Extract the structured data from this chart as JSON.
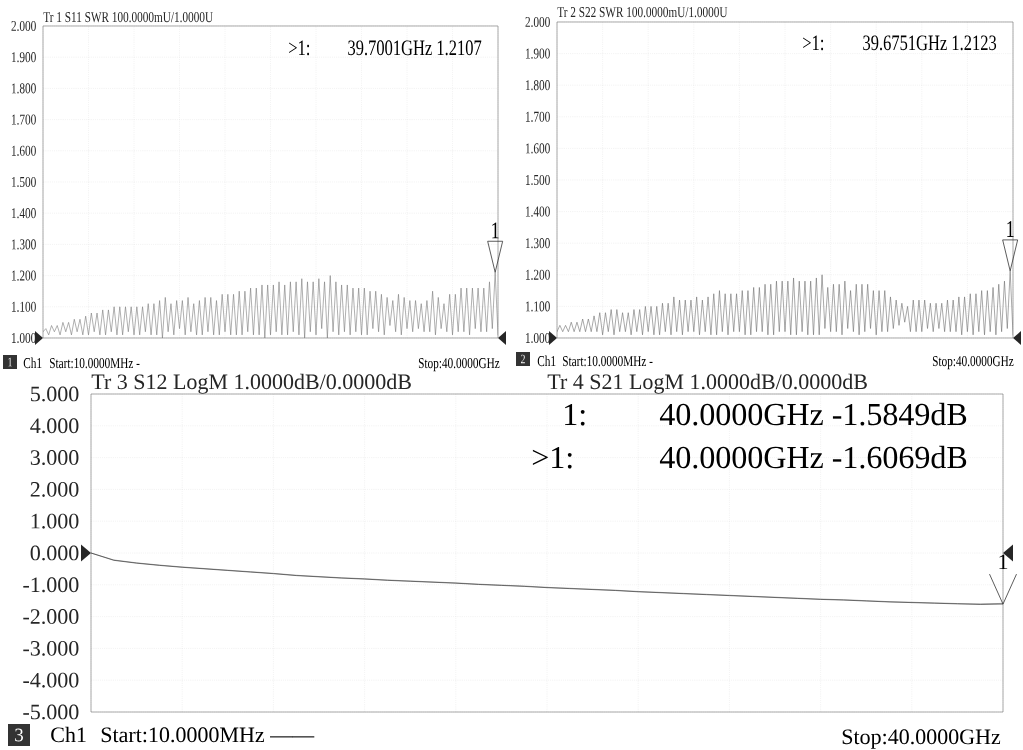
{
  "chart_data": [
    {
      "type": "line",
      "title": "Tr 1 S11 SWR 100.0000mU/1.0000U",
      "categories": [
        null,
        null,
        null,
        null,
        null,
        null,
        null,
        null,
        null,
        null,
        null,
        null,
        null,
        null,
        null,
        null,
        null,
        null,
        null,
        null,
        null,
        null,
        null,
        null,
        null,
        null,
        null,
        null,
        null,
        null,
        null,
        null,
        null,
        null,
        null,
        null,
        null,
        null,
        null,
        null,
        null,
        null,
        null,
        null,
        null,
        null,
        null,
        null,
        null,
        null,
        null,
        null,
        null,
        null,
        null,
        null,
        null,
        null,
        null,
        null,
        null,
        null,
        null,
        null,
        null,
        null,
        null,
        null,
        null,
        null,
        null,
        null,
        null,
        null,
        null,
        null,
        null,
        null,
        null,
        null,
        null,
        null,
        null,
        null,
        null,
        null,
        null,
        null,
        null,
        null,
        null,
        null,
        null,
        null,
        null,
        null,
        null,
        null,
        null,
        null,
        null,
        null,
        null,
        null,
        null,
        null,
        null,
        null,
        null,
        null,
        null,
        null,
        null,
        null,
        null,
        null,
        null,
        null,
        null,
        null,
        null,
        null,
        null,
        null,
        null,
        null,
        null,
        null,
        null,
        null,
        null,
        null,
        null,
        null,
        null,
        null,
        null,
        null,
        null,
        null,
        null,
        null,
        null,
        null,
        null,
        null,
        null,
        null,
        null,
        null,
        null,
        null,
        null,
        null,
        null,
        null,
        null,
        null,
        null,
        null,
        null
      ],
      "ylim": [
        1,
        2
      ],
      "yticks": [
        {
          "value": 1,
          "label": "1.000"
        },
        {
          "value": 1.1,
          "label": "1.100"
        },
        {
          "value": 1.2,
          "label": "1.200"
        },
        {
          "value": 1.3,
          "label": "1.300"
        },
        {
          "value": 1.4,
          "label": "1.400"
        },
        {
          "value": 1.5,
          "label": "1.500"
        },
        {
          "value": 1.6,
          "label": "1.600"
        },
        {
          "value": 1.7,
          "label": "1.700"
        },
        {
          "value": 1.8,
          "label": "1.800"
        },
        {
          "value": 1.9,
          "label": "1.900"
        },
        {
          "value": 2,
          "label": "2.000"
        }
      ],
      "grid": true,
      "series": [
        {
          "color": "#7a7a7a",
          "values": [
            1.02,
            1.03,
            1.01,
            1.04,
            1.02,
            1.04,
            1.01,
            1.05,
            1.02,
            1.05,
            1.01,
            1.06,
            1.02,
            1.06,
            1.01,
            1.07,
            1.01,
            1.08,
            1.02,
            1.08,
            1.01,
            1.09,
            1.01,
            1.09,
            1.02,
            1.1,
            1.01,
            1.1,
            1.01,
            1.1,
            1.02,
            1.1,
            1.01,
            1.1,
            1.01,
            1.1,
            1.02,
            1.11,
            1.01,
            1.11,
            1.01,
            1.12,
            1.0,
            1.13,
            1.02,
            1.11,
            1.01,
            1.12,
            1.03,
            1.12,
            1.01,
            1.13,
            1.02,
            1.11,
            1.01,
            1.12,
            1.01,
            1.13,
            1.02,
            1.13,
            1.01,
            1.12,
            1.01,
            1.14,
            1.02,
            1.14,
            1.01,
            1.14,
            1.01,
            1.15,
            1.01,
            1.15,
            1.02,
            1.16,
            1.01,
            1.16,
            1.01,
            1.17,
            1.0,
            1.17,
            1.01,
            1.17,
            1.02,
            1.18,
            1.01,
            1.17,
            1.01,
            1.18,
            1.02,
            1.18,
            1.01,
            1.19,
            1.0,
            1.18,
            1.02,
            1.18,
            1.01,
            1.19,
            1.03,
            1.18,
            1.0,
            1.2,
            1.02,
            1.18,
            1.01,
            1.17,
            1.02,
            1.17,
            1.01,
            1.16,
            1.02,
            1.16,
            1.01,
            1.16,
            1.01,
            1.15,
            1.03,
            1.15,
            1.02,
            1.14,
            1.01,
            1.13,
            1.04,
            1.12,
            1.02,
            1.14,
            1.01,
            1.13,
            1.03,
            1.12,
            1.02,
            1.12,
            1.03,
            1.11,
            1.02,
            1.12,
            1.02,
            1.15,
            1.01,
            1.13,
            1.03,
            1.11,
            1.02,
            1.14,
            1.01,
            1.14,
            1.02,
            1.16,
            1.02,
            1.16,
            1.01,
            1.16,
            1.03,
            1.16,
            1.02,
            1.16,
            1.02,
            1.18,
            1.03,
            1.2107,
            1.01
          ]
        }
      ],
      "annotations": [
        {
          "text": "1",
          "y": 1.2107
        },
        ">1:",
        "39.7001GHz 1.2107",
        "1",
        "Ch1",
        "Start:10.0000MHz -",
        "Stop:40.0000GHz"
      ]
    },
    {
      "type": "line",
      "title": "Tr 2 S22 SWR 100.0000mU/1.0000U",
      "categories": [
        null,
        null,
        null,
        null,
        null,
        null,
        null,
        null,
        null,
        null,
        null,
        null,
        null,
        null,
        null,
        null,
        null,
        null,
        null,
        null,
        null,
        null,
        null,
        null,
        null,
        null,
        null,
        null,
        null,
        null,
        null,
        null,
        null,
        null,
        null,
        null,
        null,
        null,
        null,
        null,
        null,
        null,
        null,
        null,
        null,
        null,
        null,
        null,
        null,
        null,
        null,
        null,
        null,
        null,
        null,
        null,
        null,
        null,
        null,
        null,
        null,
        null,
        null,
        null,
        null,
        null,
        null,
        null,
        null,
        null,
        null,
        null,
        null,
        null,
        null,
        null,
        null,
        null,
        null,
        null,
        null,
        null,
        null,
        null,
        null,
        null,
        null,
        null,
        null,
        null,
        null,
        null,
        null,
        null,
        null,
        null,
        null,
        null,
        null,
        null,
        null,
        null,
        null,
        null,
        null,
        null,
        null,
        null,
        null,
        null,
        null,
        null,
        null,
        null,
        null,
        null,
        null,
        null,
        null,
        null,
        null,
        null,
        null,
        null,
        null,
        null,
        null,
        null,
        null,
        null,
        null,
        null,
        null,
        null,
        null,
        null,
        null,
        null,
        null,
        null,
        null,
        null,
        null,
        null,
        null,
        null,
        null,
        null,
        null,
        null,
        null,
        null,
        null,
        null,
        null,
        null,
        null,
        null,
        null,
        null,
        null
      ],
      "ylim": [
        1,
        2
      ],
      "yticks": [
        {
          "value": 1,
          "label": "1.000"
        },
        {
          "value": 1.1,
          "label": "1.100"
        },
        {
          "value": 1.2,
          "label": "1.200"
        },
        {
          "value": 1.3,
          "label": "1.300"
        },
        {
          "value": 1.4,
          "label": "1.400"
        },
        {
          "value": 1.5,
          "label": "1.500"
        },
        {
          "value": 1.6,
          "label": "1.600"
        },
        {
          "value": 1.7,
          "label": "1.700"
        },
        {
          "value": 1.8,
          "label": "1.800"
        },
        {
          "value": 1.9,
          "label": "1.900"
        },
        {
          "value": 2,
          "label": "2.000"
        }
      ],
      "grid": true,
      "series": [
        {
          "color": "#6e6e6e",
          "values": [
            1.02,
            1.04,
            1.02,
            1.04,
            1.02,
            1.05,
            1.02,
            1.05,
            1.02,
            1.06,
            1.02,
            1.06,
            1.02,
            1.07,
            1.02,
            1.08,
            1.01,
            1.08,
            1.02,
            1.09,
            1.01,
            1.09,
            1.02,
            1.08,
            1.02,
            1.08,
            1.01,
            1.09,
            1.02,
            1.09,
            1.01,
            1.1,
            1.02,
            1.1,
            1.01,
            1.1,
            1.01,
            1.11,
            1.02,
            1.11,
            1.01,
            1.13,
            1.02,
            1.12,
            1.01,
            1.12,
            1.02,
            1.12,
            1.02,
            1.13,
            1.01,
            1.12,
            1.02,
            1.13,
            1.01,
            1.14,
            1.01,
            1.15,
            1.02,
            1.14,
            1.01,
            1.14,
            1.02,
            1.14,
            1.02,
            1.15,
            1.01,
            1.15,
            1.01,
            1.16,
            1.02,
            1.16,
            1.02,
            1.17,
            1.01,
            1.17,
            1.01,
            1.18,
            1.02,
            1.18,
            1.02,
            1.18,
            1.01,
            1.19,
            1.01,
            1.18,
            1.02,
            1.18,
            1.01,
            1.18,
            1.01,
            1.19,
            1.01,
            1.2,
            1.03,
            1.16,
            1.02,
            1.17,
            1.02,
            1.17,
            1.01,
            1.18,
            1.03,
            1.15,
            1.02,
            1.17,
            1.01,
            1.17,
            1.02,
            1.17,
            1.03,
            1.15,
            1.01,
            1.15,
            1.02,
            1.15,
            1.02,
            1.13,
            1.03,
            1.12,
            1.04,
            1.11,
            1.05,
            1.1,
            1.02,
            1.12,
            1.02,
            1.12,
            1.02,
            1.12,
            1.03,
            1.11,
            1.02,
            1.11,
            1.03,
            1.11,
            1.02,
            1.12,
            1.02,
            1.12,
            1.02,
            1.13,
            1.01,
            1.13,
            1.02,
            1.14,
            1.01,
            1.14,
            1.02,
            1.15,
            1.01,
            1.15,
            1.02,
            1.16,
            1.01,
            1.17,
            1.02,
            1.18,
            1.03,
            1.2123,
            1.01
          ]
        }
      ],
      "annotations": [
        {
          "text": "1",
          "y": 1.2123
        },
        ">1:",
        "39.6751GHz 1.2123",
        "2",
        "Ch1",
        "Start:10.0000MHz -",
        "Stop:40.0000GHz"
      ]
    },
    {
      "type": "line",
      "title": "Tr 3 S12 LogM 1.0000dB/0.0000dB",
      "subtitle": "Tr 4 S21 LogM 1.0000dB/0.0000dB",
      "categories": [
        null,
        null,
        null,
        null,
        null,
        null,
        null,
        null,
        null,
        null,
        null,
        null,
        null,
        null,
        null,
        null,
        null,
        null,
        null,
        null,
        null,
        null,
        null,
        null,
        null,
        null,
        null,
        null,
        null,
        null,
        null,
        null,
        null,
        null,
        null,
        null,
        null,
        null,
        null,
        null,
        null
      ],
      "ylim": [
        -5,
        5
      ],
      "yticks": [
        {
          "value": -5,
          "label": "-5.000"
        },
        {
          "value": -4,
          "label": "-4.000"
        },
        {
          "value": -3,
          "label": "-3.000"
        },
        {
          "value": -2,
          "label": "-2.000"
        },
        {
          "value": -1,
          "label": "-1.000"
        },
        {
          "value": 0,
          "label": "0.000"
        },
        {
          "value": 1,
          "label": "1.000"
        },
        {
          "value": 2,
          "label": "2.000"
        },
        {
          "value": 3,
          "label": "3.000"
        },
        {
          "value": 4,
          "label": "4.000"
        },
        {
          "value": 5,
          "label": "5.000"
        }
      ],
      "grid": true,
      "series": [
        {
          "color": "#666666",
          "values": [
            0.0,
            -0.22,
            -0.31,
            -0.38,
            -0.44,
            -0.49,
            -0.54,
            -0.59,
            -0.64,
            -0.7,
            -0.74,
            -0.78,
            -0.81,
            -0.85,
            -0.88,
            -0.91,
            -0.94,
            -0.98,
            -1.01,
            -1.04,
            -1.08,
            -1.11,
            -1.14,
            -1.17,
            -1.21,
            -1.24,
            -1.27,
            -1.3,
            -1.33,
            -1.36,
            -1.39,
            -1.42,
            -1.45,
            -1.47,
            -1.5,
            -1.53,
            -1.55,
            -1.57,
            -1.59,
            -1.6,
            -1.5849
          ]
        },
        {
          "color": "#2a2a2a",
          "values": [
            0.0,
            -0.23,
            -0.32,
            -0.39,
            -0.45,
            -0.5,
            -0.55,
            -0.6,
            -0.65,
            -0.71,
            -0.75,
            -0.79,
            -0.82,
            -0.86,
            -0.89,
            -0.92,
            -0.95,
            -0.99,
            -1.02,
            -1.05,
            -1.09,
            -1.12,
            -1.15,
            -1.18,
            -1.22,
            -1.25,
            -1.28,
            -1.31,
            -1.34,
            -1.37,
            -1.4,
            -1.43,
            -1.46,
            -1.48,
            -1.51,
            -1.54,
            -1.56,
            -1.58,
            -1.6,
            -1.62,
            -1.6069
          ]
        }
      ],
      "annotations": [
        {
          "text": "1",
          "y": -1.6069
        },
        "1:",
        "40.0000GHz -1.5849dB",
        ">1:",
        "40.0000GHz -1.6069dB",
        "3",
        "Ch1",
        "Start:10.0000MHz ——",
        "Stop:40.0000GHz"
      ]
    }
  ]
}
